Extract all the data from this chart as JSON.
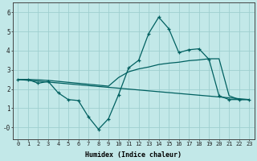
{
  "xlabel": "Humidex (Indice chaleur)",
  "bg_color": "#c2e8e8",
  "grid_color": "#9fcfcf",
  "line_color": "#006060",
  "xlim": [
    -0.5,
    23.5
  ],
  "ylim": [
    -0.6,
    6.5
  ],
  "xticks": [
    0,
    1,
    2,
    3,
    4,
    5,
    6,
    7,
    8,
    9,
    10,
    11,
    12,
    13,
    14,
    15,
    16,
    17,
    18,
    19,
    20,
    21,
    22,
    23
  ],
  "yticks": [
    0,
    1,
    2,
    3,
    4,
    5,
    6
  ],
  "ytick_labels": [
    "-0",
    "1",
    "2",
    "3",
    "4",
    "5",
    "6"
  ],
  "line1_x": [
    0,
    1,
    2,
    3,
    4,
    5,
    6,
    7,
    8,
    9,
    10,
    11,
    12,
    13,
    14,
    15,
    16,
    17,
    18,
    19,
    20,
    21,
    22,
    23
  ],
  "line1_y": [
    2.5,
    2.5,
    2.3,
    2.4,
    1.8,
    1.45,
    1.4,
    0.55,
    -0.1,
    0.45,
    1.7,
    3.1,
    3.5,
    4.9,
    5.75,
    5.15,
    3.9,
    4.05,
    4.1,
    3.55,
    1.65,
    1.45,
    1.45,
    1.45
  ],
  "line2_x": [
    0,
    1,
    2,
    3,
    4,
    9,
    10,
    11,
    12,
    13,
    14,
    15,
    16,
    17,
    18,
    19,
    20,
    21,
    22,
    23
  ],
  "line2_y": [
    2.5,
    2.5,
    2.48,
    2.45,
    2.4,
    2.15,
    2.6,
    2.9,
    3.05,
    3.15,
    3.28,
    3.35,
    3.4,
    3.48,
    3.52,
    3.58,
    3.58,
    1.65,
    1.45,
    1.45
  ],
  "line3_x": [
    0,
    23
  ],
  "line3_y": [
    2.5,
    1.45
  ]
}
